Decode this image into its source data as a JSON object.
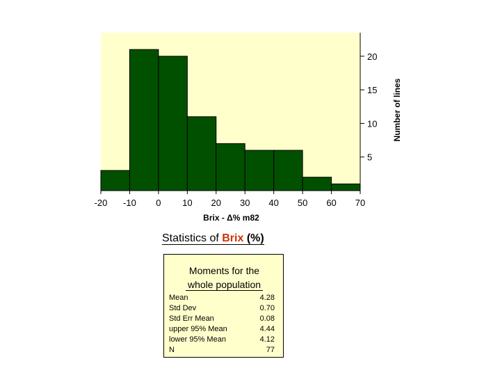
{
  "chart_data": {
    "type": "bar",
    "bin_edges": [
      -20,
      -10,
      0,
      10,
      20,
      30,
      40,
      50,
      60,
      70
    ],
    "values": [
      3,
      21,
      20,
      11,
      7,
      6,
      6,
      2,
      1
    ],
    "xlabel": "Brix - Δ% m82",
    "ylabel": "Number of lines",
    "x_ticks": [
      -20,
      -10,
      0,
      10,
      20,
      30,
      40,
      50,
      60,
      70
    ],
    "y_ticks": [
      5,
      10,
      15,
      20
    ],
    "xlim": [
      -20,
      70
    ],
    "ylim": [
      0,
      23.5
    ],
    "y_axis_side": "right",
    "grid": false,
    "colors": {
      "plot_background": "#ffffcc",
      "bar_fill": "#005000",
      "bar_edge": "#000000"
    }
  },
  "stats": {
    "title_prefix": "Statistics of ",
    "title_variable": "Brix ",
    "title_unit": "(%)",
    "box_title_line1": "Moments for the",
    "box_title_line2": "whole population",
    "rows": [
      {
        "label": "Mean",
        "value": "4.28"
      },
      {
        "label": "Std Dev",
        "value": "0.70"
      },
      {
        "label": "Std Err Mean",
        "value": "0.08"
      },
      {
        "label": "upper 95% Mean",
        "value": "4.44"
      },
      {
        "label": "lower 95% Mean",
        "value": "4.12"
      },
      {
        "label": "N",
        "value": "77"
      }
    ]
  }
}
